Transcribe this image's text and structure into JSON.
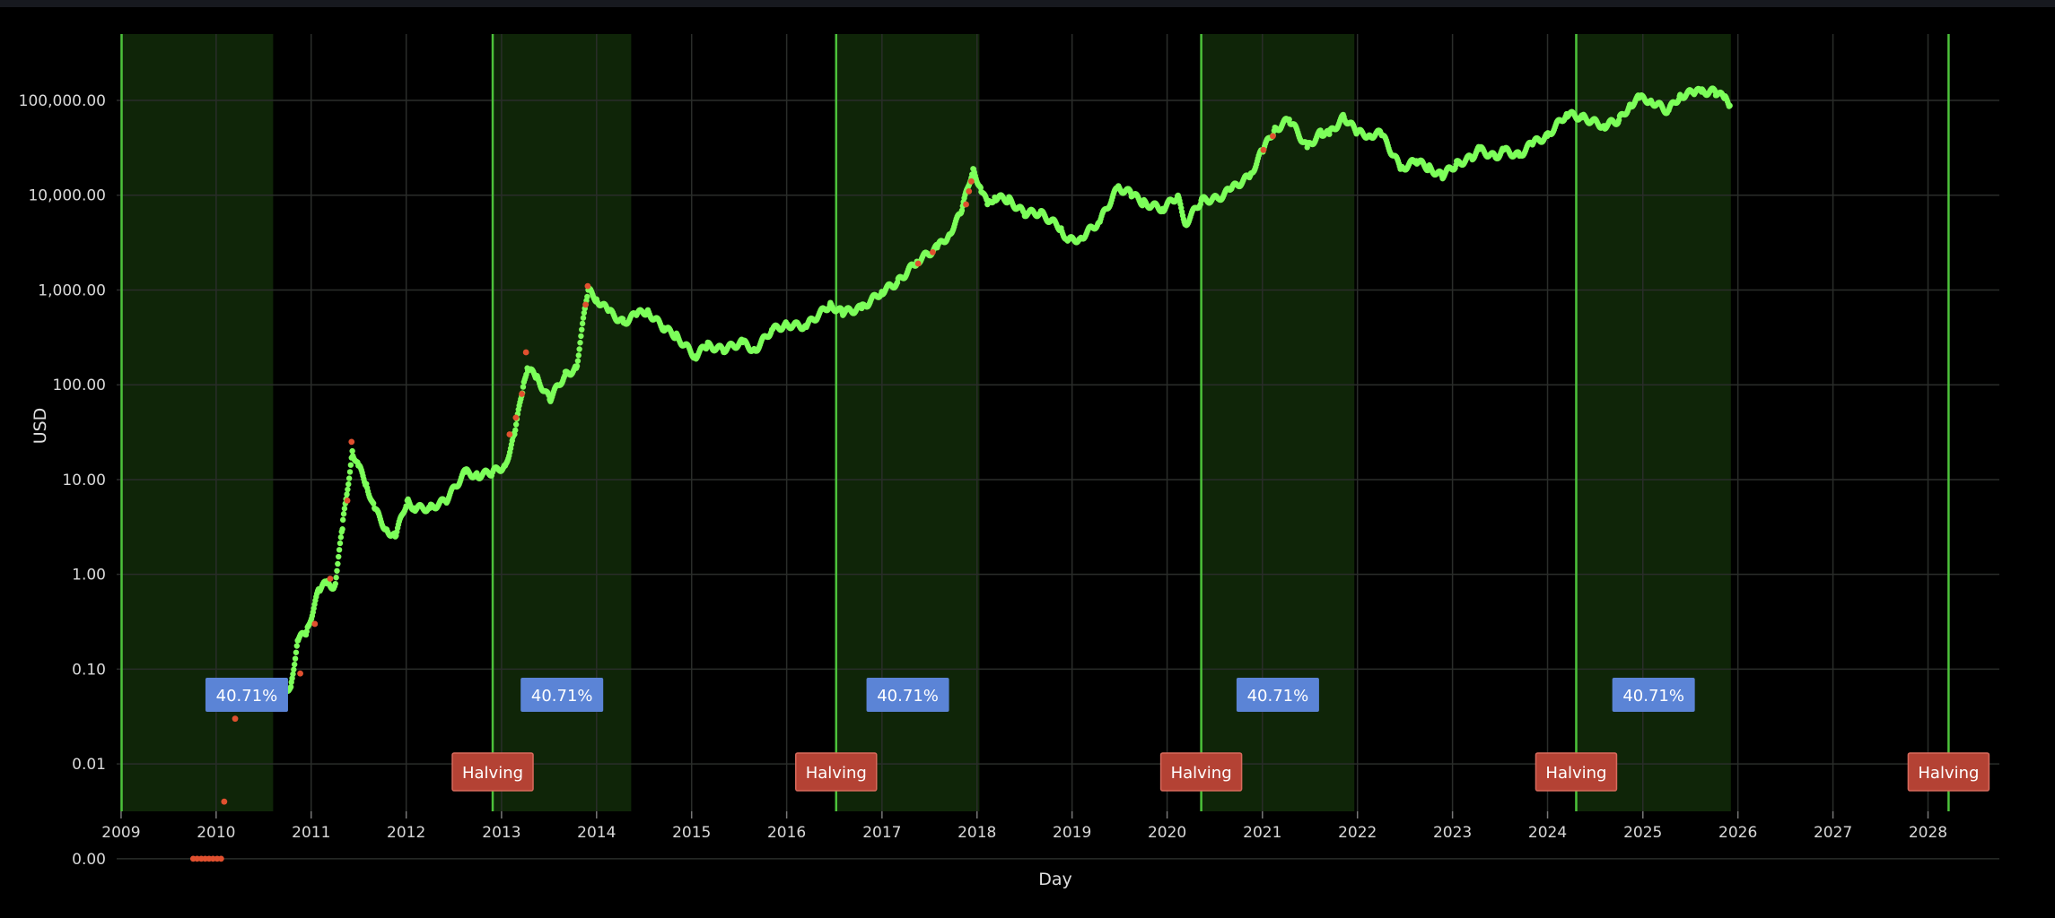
{
  "chart_data": {
    "type": "scatter",
    "title": "",
    "xlabel": "Day",
    "ylabel": "USD",
    "y_scale": "log",
    "xlim": [
      "2008-12-15",
      "2028-10-01"
    ],
    "ylim_log10": [
      -2.5,
      5.7
    ],
    "grid": true,
    "legend": "none",
    "x_tick_labels": [
      "2009",
      "2010",
      "2011",
      "2012",
      "2013",
      "2014",
      "2015",
      "2016",
      "2017",
      "2018",
      "2019",
      "2020",
      "2021",
      "2022",
      "2023",
      "2024",
      "2025",
      "2026",
      "2027",
      "2028"
    ],
    "y_ticks": [
      {
        "value": 100000,
        "label": "100,000.00"
      },
      {
        "value": 10000,
        "label": "10,000.00"
      },
      {
        "value": 1000,
        "label": "1,000.00"
      },
      {
        "value": 100,
        "label": "100.00"
      },
      {
        "value": 10,
        "label": "10.00"
      },
      {
        "value": 1,
        "label": "1.00"
      },
      {
        "value": 0.1,
        "label": "0.10"
      },
      {
        "value": 0.01,
        "label": "0.01"
      },
      {
        "value": 0.001,
        "label": "0.00"
      }
    ],
    "halving_dates": [
      "2009-01-03",
      "2012-11-28",
      "2016-07-09",
      "2020-05-11",
      "2024-04-20",
      "2028-03-20"
    ],
    "halving_labels": [
      "Halving",
      "Halving",
      "Halving",
      "Halving",
      "Halving"
    ],
    "bull_periods": [
      {
        "start": "2009-01-03",
        "end": "2010-08-08",
        "label": "40.71%"
      },
      {
        "start": "2012-11-28",
        "end": "2014-05-14",
        "label": "40.71%"
      },
      {
        "start": "2016-07-09",
        "end": "2018-01-10",
        "label": "40.71%"
      },
      {
        "start": "2020-05-11",
        "end": "2021-12-20",
        "label": "40.71%"
      },
      {
        "start": "2024-04-20",
        "end": "2025-12-05",
        "label": "40.71%"
      }
    ],
    "series": [
      {
        "color": "#7dff5a",
        "points": [
          [
            "2010-09-01",
            0.06
          ],
          [
            "2010-10-15",
            0.065
          ],
          [
            "2010-11-10",
            0.2
          ],
          [
            "2010-12-15",
            0.25
          ],
          [
            "2011-02-01",
            0.7
          ],
          [
            "2011-03-01",
            0.8
          ],
          [
            "2011-04-01",
            0.75
          ],
          [
            "2011-05-01",
            3.0
          ],
          [
            "2011-06-08",
            20
          ],
          [
            "2011-07-01",
            14
          ],
          [
            "2011-08-01",
            9
          ],
          [
            "2011-09-01",
            5
          ],
          [
            "2011-10-15",
            3
          ],
          [
            "2011-11-20",
            2.5
          ],
          [
            "2012-01-05",
            6
          ],
          [
            "2012-02-01",
            5
          ],
          [
            "2012-04-01",
            5
          ],
          [
            "2012-06-01",
            6
          ],
          [
            "2012-08-15",
            12
          ],
          [
            "2012-10-01",
            11
          ],
          [
            "2012-11-28",
            12
          ],
          [
            "2013-01-15",
            14
          ],
          [
            "2013-02-20",
            30
          ],
          [
            "2013-03-25",
            95
          ],
          [
            "2013-04-10",
            150
          ],
          [
            "2013-05-15",
            120
          ],
          [
            "2013-07-05",
            70
          ],
          [
            "2013-09-01",
            125
          ],
          [
            "2013-10-15",
            150
          ],
          [
            "2013-11-30",
            1000
          ],
          [
            "2014-01-01",
            800
          ],
          [
            "2014-02-15",
            600
          ],
          [
            "2014-04-15",
            450
          ],
          [
            "2014-06-01",
            550
          ],
          [
            "2014-07-15",
            600
          ],
          [
            "2014-09-15",
            400
          ],
          [
            "2014-11-01",
            330
          ],
          [
            "2015-01-15",
            200
          ],
          [
            "2015-03-01",
            260
          ],
          [
            "2015-05-01",
            235
          ],
          [
            "2015-07-15",
            280
          ],
          [
            "2015-09-01",
            230
          ],
          [
            "2015-11-05",
            380
          ],
          [
            "2016-01-01",
            430
          ],
          [
            "2016-03-15",
            415
          ],
          [
            "2016-06-15",
            700
          ],
          [
            "2016-08-01",
            580
          ],
          [
            "2016-10-15",
            640
          ],
          [
            "2016-12-31",
            960
          ],
          [
            "2017-03-01",
            1200
          ],
          [
            "2017-05-15",
            2000
          ],
          [
            "2017-08-01",
            2800
          ],
          [
            "2017-09-15",
            3800
          ],
          [
            "2017-11-01",
            6500
          ],
          [
            "2017-12-17",
            19000
          ],
          [
            "2018-01-15",
            12000
          ],
          [
            "2018-02-10",
            8000
          ],
          [
            "2018-03-10",
            9500
          ],
          [
            "2018-05-01",
            9000
          ],
          [
            "2018-07-01",
            6500
          ],
          [
            "2018-09-01",
            6500
          ],
          [
            "2018-11-20",
            4500
          ],
          [
            "2018-12-15",
            3300
          ],
          [
            "2019-02-01",
            3500
          ],
          [
            "2019-04-15",
            5200
          ],
          [
            "2019-06-26",
            12000
          ],
          [
            "2019-08-15",
            10500
          ],
          [
            "2019-10-01",
            8300
          ],
          [
            "2019-12-15",
            7200
          ],
          [
            "2020-02-10",
            9800
          ],
          [
            "2020-03-13",
            5000
          ],
          [
            "2020-05-11",
            8800
          ],
          [
            "2020-07-15",
            9200
          ],
          [
            "2020-09-01",
            11500
          ],
          [
            "2020-11-15",
            16000
          ],
          [
            "2020-12-31",
            29000
          ],
          [
            "2021-02-15",
            48000
          ],
          [
            "2021-04-14",
            63000
          ],
          [
            "2021-06-22",
            32000
          ],
          [
            "2021-08-15",
            46000
          ],
          [
            "2021-09-15",
            44000
          ],
          [
            "2021-11-10",
            67000
          ],
          [
            "2021-12-31",
            46000
          ],
          [
            "2022-02-15",
            43000
          ],
          [
            "2022-04-01",
            45000
          ],
          [
            "2022-06-18",
            19000
          ],
          [
            "2022-08-15",
            23000
          ],
          [
            "2022-10-01",
            19500
          ],
          [
            "2022-11-21",
            16000
          ],
          [
            "2023-01-15",
            21000
          ],
          [
            "2023-03-15",
            25000
          ],
          [
            "2023-04-14",
            30500
          ],
          [
            "2023-06-15",
            25000
          ],
          [
            "2023-07-15",
            30000
          ],
          [
            "2023-09-15",
            26000
          ],
          [
            "2023-11-01",
            35000
          ],
          [
            "2023-12-31",
            42000
          ],
          [
            "2024-03-14",
            72000
          ],
          [
            "2024-05-15",
            66000
          ],
          [
            "2024-08-05",
            54000
          ],
          [
            "2024-10-01",
            62000
          ],
          [
            "2024-11-15",
            90000
          ],
          [
            "2024-12-17",
            106000
          ],
          [
            "2025-02-01",
            100000
          ],
          [
            "2025-04-07",
            77000
          ],
          [
            "2025-05-22",
            111000
          ],
          [
            "2025-07-14",
            122000
          ],
          [
            "2025-08-14",
            123000
          ],
          [
            "2025-10-06",
            124000
          ],
          [
            "2025-11-10",
            105000
          ],
          [
            "2025-12-01",
            88000
          ]
        ]
      },
      {
        "color": "#e0502f",
        "points": [
          [
            "2009-10-05",
            0.001
          ],
          [
            "2009-10-20",
            0.001
          ],
          [
            "2009-11-05",
            0.001
          ],
          [
            "2009-11-20",
            0.001
          ],
          [
            "2009-12-05",
            0.001
          ],
          [
            "2009-12-20",
            0.001
          ],
          [
            "2010-01-05",
            0.001
          ],
          [
            "2010-01-20",
            0.001
          ],
          [
            "2010-02-01",
            0.004
          ],
          [
            "2010-03-15",
            0.03
          ],
          [
            "2010-05-01",
            0.04
          ],
          [
            "2010-06-15",
            0.06
          ],
          [
            "2010-11-20",
            0.09
          ],
          [
            "2011-01-15",
            0.3
          ],
          [
            "2011-03-15",
            0.9
          ],
          [
            "2011-05-20",
            6
          ],
          [
            "2011-06-05",
            25
          ],
          [
            "2013-02-01",
            30
          ],
          [
            "2013-02-25",
            45
          ],
          [
            "2013-03-20",
            80
          ],
          [
            "2013-04-05",
            220
          ],
          [
            "2013-11-20",
            700
          ],
          [
            "2013-11-28",
            1100
          ],
          [
            "2017-05-20",
            1900
          ],
          [
            "2017-07-15",
            2500
          ],
          [
            "2017-11-20",
            8000
          ],
          [
            "2017-12-01",
            11000
          ],
          [
            "2017-12-10",
            14000
          ],
          [
            "2021-01-05",
            30000
          ],
          [
            "2021-02-10",
            42000
          ]
        ]
      }
    ]
  }
}
